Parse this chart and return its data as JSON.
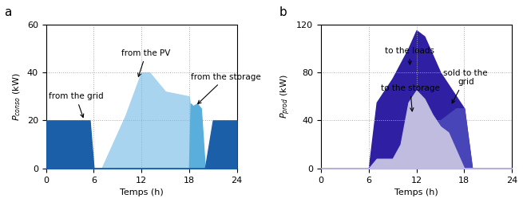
{
  "chart_a": {
    "title": "a",
    "ylabel": "$P_{conso}$ (kW)",
    "xlabel": "Temps (h)",
    "ylim": [
      0,
      60
    ],
    "xlim": [
      0,
      24
    ],
    "yticks": [
      0,
      20,
      40,
      60
    ],
    "xticks": [
      0,
      6,
      12,
      18,
      24
    ],
    "from_grid_x": [
      0,
      5.5,
      6,
      20,
      21,
      24
    ],
    "from_grid_y": [
      20,
      20,
      0,
      0,
      20,
      20
    ],
    "from_grid_color": "#1a5fa8",
    "from_pv_x": [
      0,
      6,
      7,
      10,
      12,
      13,
      15,
      18,
      19,
      20,
      24
    ],
    "from_pv_y": [
      0,
      0,
      0,
      22,
      40,
      40,
      32,
      30,
      0,
      0,
      0
    ],
    "from_pv_color": "#a8d4ef",
    "from_storage_x": [
      0,
      18,
      18.2,
      18.5,
      19,
      19.5,
      20,
      24
    ],
    "from_storage_y": [
      0,
      0,
      27,
      26,
      27,
      25,
      0,
      0
    ],
    "from_storage_color": "#5aaedc"
  },
  "chart_b": {
    "title": "b",
    "ylabel": "$P_{prod}$ (kW)",
    "xlabel": "Temps (h)",
    "ylim": [
      0,
      120
    ],
    "xlim": [
      0,
      24
    ],
    "yticks": [
      0,
      40,
      80,
      120
    ],
    "xticks": [
      0,
      6,
      12,
      18,
      24
    ],
    "to_loads_x": [
      0,
      6,
      7,
      9,
      11,
      12,
      13,
      15,
      17,
      18,
      19,
      24
    ],
    "to_loads_y": [
      0,
      0,
      55,
      75,
      100,
      115,
      110,
      80,
      60,
      50,
      0,
      0
    ],
    "to_loads_color": "#2e1fa3",
    "to_storage_x": [
      0,
      6,
      7,
      9,
      10,
      11,
      12,
      13,
      14,
      15,
      16,
      17,
      18,
      19,
      24
    ],
    "to_storage_y": [
      0,
      0,
      8,
      8,
      20,
      55,
      65,
      58,
      45,
      35,
      30,
      15,
      0,
      0,
      0
    ],
    "to_storage_color": "#c0bce0",
    "sold_x": [
      0,
      6,
      7,
      9,
      11,
      12,
      13,
      15,
      17,
      18,
      19,
      24
    ],
    "sold_y": [
      0,
      0,
      55,
      75,
      100,
      115,
      110,
      80,
      60,
      50,
      0,
      0
    ],
    "sold_color": "#4845b8"
  }
}
